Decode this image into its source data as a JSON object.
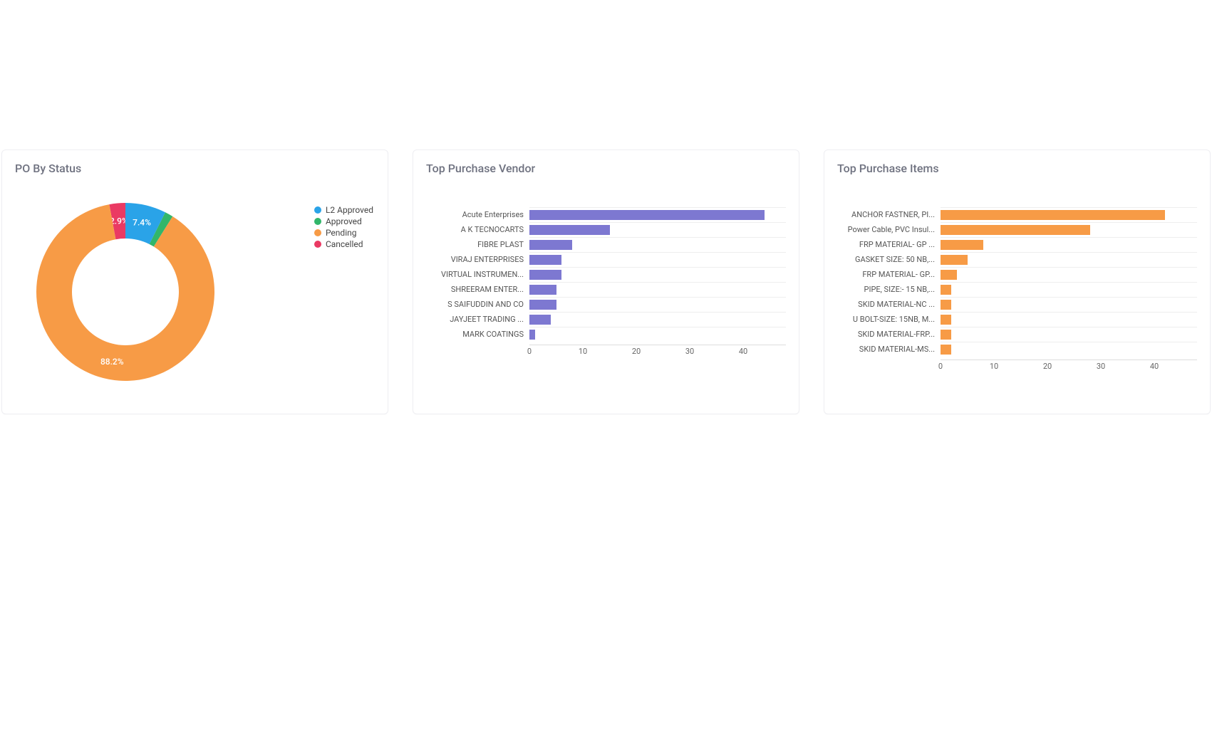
{
  "page_background": "#ffffff",
  "card_border": "#eeeef2",
  "grid_color": "#eeeeee",
  "axis_color": "#dddddd",
  "tick_color": "#666666",
  "title_color": "#6f7280",
  "po_status": {
    "title": "PO By Status",
    "type": "donut",
    "inner_radius_pct": 60,
    "slices": [
      {
        "label": "L2 Approved",
        "pct": 7.4,
        "color": "#2aa3e8",
        "show_pct": "7.4%"
      },
      {
        "label": "Approved",
        "pct": 1.5,
        "color": "#32b66a",
        "show_pct": ""
      },
      {
        "label": "Pending",
        "pct": 88.2,
        "color": "#f79b46",
        "show_pct": "88.2%"
      },
      {
        "label": "Cancelled",
        "pct": 2.9,
        "color": "#ea3a63",
        "show_pct": "2.9%"
      }
    ],
    "legend_order": [
      "L2 Approved",
      "Approved",
      "Pending",
      "Cancelled"
    ],
    "label_color": "#ffffff",
    "label_fontsize": 12
  },
  "top_vendors": {
    "title": "Top Purchase Vendor",
    "type": "hbar",
    "bar_color": "#7d78d1",
    "categories": [
      "Acute Enterprises",
      "A K TECNOCARTS",
      "FIBRE PLAST",
      "VIRAJ ENTERPRISES",
      "VIRTUAL INSTRUMEN...",
      "SHREERAM ENTER...",
      "S SAIFUDDIN AND CO",
      "JAYJEET TRADING ...",
      "MARK COATINGS"
    ],
    "values": [
      44,
      15,
      8,
      6,
      6,
      5,
      5,
      4,
      1
    ],
    "xlim": [
      0,
      48
    ],
    "xticks": [
      0,
      10,
      20,
      30,
      40
    ],
    "label_fontsize": 11
  },
  "top_items": {
    "title": "Top Purchase Items",
    "type": "hbar",
    "bar_color": "#f79b46",
    "categories": [
      "ANCHOR FASTNER, PI...",
      "Power Cable, PVC Insul...",
      "FRP MATERIAL- GP ...",
      "GASKET SIZE: 50 NB,...",
      "FRP MATERIAL- GP...",
      "PIPE, SIZE:- 15 NB,...",
      "SKID MATERIAL-NC ...",
      "U BOLT-SIZE: 15NB, M...",
      "SKID MATERIAL-FRP...",
      "SKID MATERIAL-MS..."
    ],
    "values": [
      42,
      28,
      8,
      5,
      3,
      2,
      2,
      2,
      2,
      2
    ],
    "xlim": [
      0,
      48
    ],
    "xticks": [
      0,
      10,
      20,
      30,
      40
    ],
    "label_fontsize": 11
  }
}
